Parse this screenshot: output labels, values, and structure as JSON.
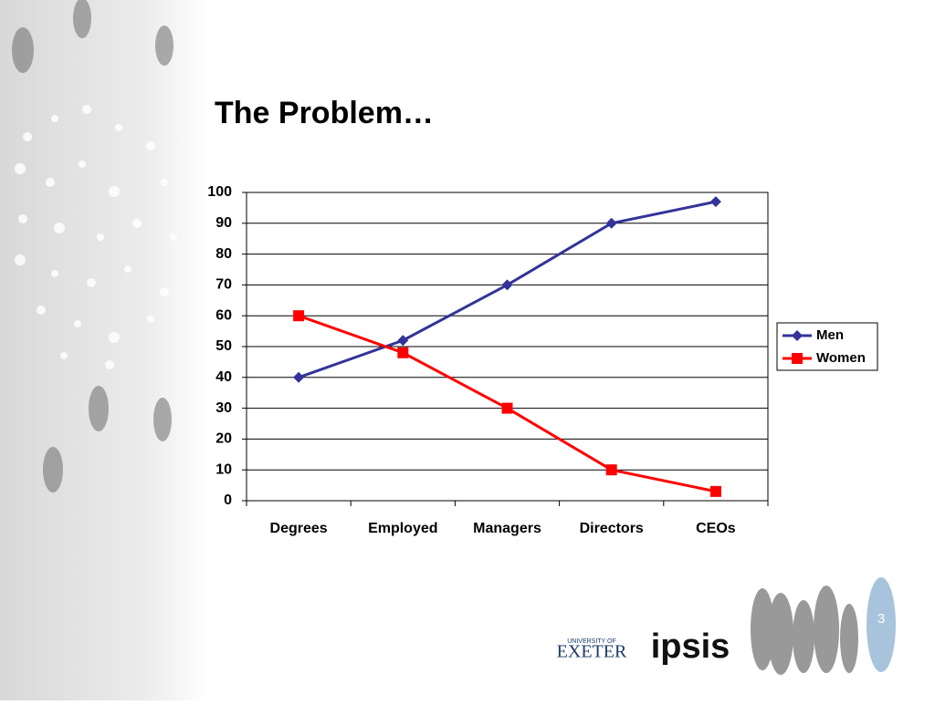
{
  "chart_data": {
    "type": "line",
    "title": "The Problem…",
    "categories": [
      "Degrees",
      "Employed",
      "Managers",
      "Directors",
      "CEOs"
    ],
    "series": [
      {
        "name": "Men",
        "color": "#333399",
        "marker": "diamond",
        "values": [
          40,
          52,
          70,
          90,
          97
        ]
      },
      {
        "name": "Women",
        "color": "#ff0000",
        "marker": "square",
        "values": [
          60,
          48,
          30,
          10,
          3
        ]
      }
    ],
    "ylim": [
      0,
      100
    ],
    "yticks": [
      0,
      10,
      20,
      30,
      40,
      50,
      60,
      70,
      80,
      90,
      100
    ],
    "grid": true,
    "legend": "right"
  },
  "slide": {
    "page_number": "3",
    "logo_university_top": "UNIVERSITY OF",
    "logo_university": "EXETER",
    "logo_ipsis": "ipsis"
  }
}
